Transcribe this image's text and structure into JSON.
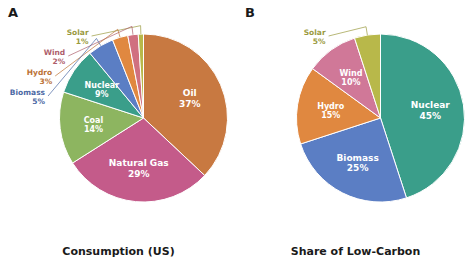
{
  "chart_data": [
    {
      "type": "pie",
      "title": "Consumption (US)",
      "annotations": [
        "A"
      ],
      "categories": [
        "Oil",
        "Natural Gas",
        "Coal",
        "Nuclear",
        "Biomass",
        "Hydro",
        "Wind",
        "Solar"
      ],
      "values": [
        37,
        29,
        14,
        9,
        5,
        3,
        2,
        1
      ],
      "value_labels": [
        "37%",
        "29%",
        "14%",
        "9%",
        "5%",
        "3%",
        "2%",
        "1%"
      ],
      "colors": [
        "#c87941",
        "#c45b8a",
        "#8db560",
        "#3a9e8a",
        "#5b7ec4",
        "#e08840",
        "#d07080",
        "#b8b84a"
      ],
      "data_labels": true
    },
    {
      "type": "pie",
      "title": "Share of Low-Carbon",
      "annotations": [
        "B"
      ],
      "categories": [
        "Nuclear",
        "Biomass",
        "Hydro",
        "Wind",
        "Solar"
      ],
      "values": [
        45,
        25,
        15,
        10,
        5
      ],
      "value_labels": [
        "45%",
        "25%",
        "15%",
        "10%",
        "5%"
      ],
      "colors": [
        "#3a9e8a",
        "#5b7ec4",
        "#e08840",
        "#d07898",
        "#b8b84a"
      ],
      "data_labels": true
    }
  ]
}
